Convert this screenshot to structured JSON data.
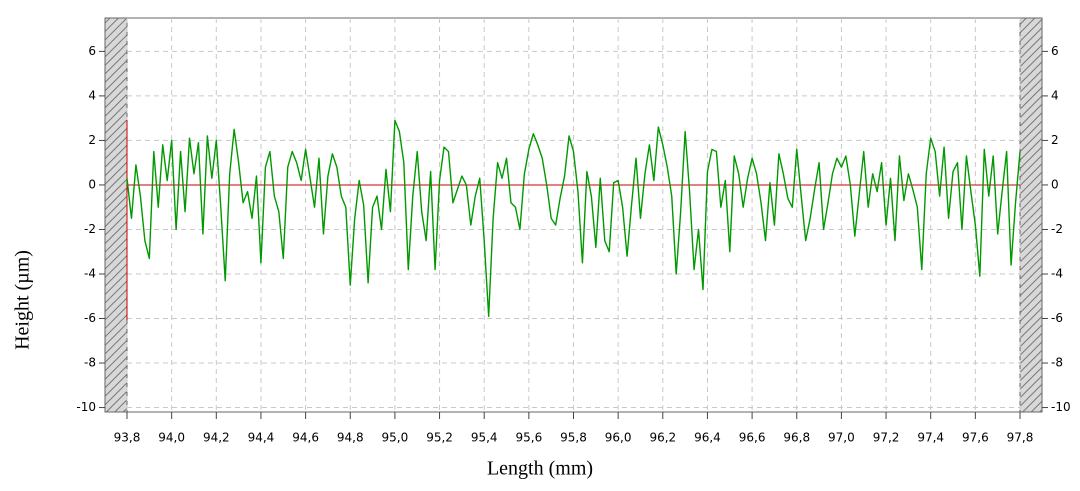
{
  "chart_data": {
    "type": "line",
    "xlabel": "Length (mm)",
    "ylabel": "Height (µm)",
    "x": [
      93.8,
      93.82,
      93.84,
      93.86,
      93.88,
      93.9,
      93.92,
      93.94,
      93.96,
      93.98,
      94.0,
      94.02,
      94.04,
      94.06,
      94.08,
      94.1,
      94.12,
      94.14,
      94.16,
      94.18,
      94.2,
      94.22,
      94.24,
      94.26,
      94.28,
      94.3,
      94.32,
      94.34,
      94.36,
      94.38,
      94.4,
      94.42,
      94.44,
      94.46,
      94.48,
      94.5,
      94.52,
      94.54,
      94.56,
      94.58,
      94.6,
      94.62,
      94.64,
      94.66,
      94.68,
      94.7,
      94.72,
      94.74,
      94.76,
      94.78,
      94.8,
      94.82,
      94.84,
      94.86,
      94.88,
      94.9,
      94.92,
      94.94,
      94.96,
      94.98,
      95.0,
      95.02,
      95.04,
      95.06,
      95.08,
      95.1,
      95.12,
      95.14,
      95.16,
      95.18,
      95.2,
      95.22,
      95.24,
      95.26,
      95.28,
      95.3,
      95.32,
      95.34,
      95.36,
      95.38,
      95.4,
      95.42,
      95.44,
      95.46,
      95.48,
      95.5,
      95.52,
      95.54,
      95.56,
      95.58,
      95.6,
      95.62,
      95.64,
      95.66,
      95.68,
      95.7,
      95.72,
      95.74,
      95.76,
      95.78,
      95.8,
      95.82,
      95.84,
      95.86,
      95.88,
      95.9,
      95.92,
      95.94,
      95.96,
      95.98,
      96.0,
      96.02,
      96.04,
      96.06,
      96.08,
      96.1,
      96.12,
      96.14,
      96.16,
      96.18,
      96.2,
      96.22,
      96.24,
      96.26,
      96.28,
      96.3,
      96.32,
      96.34,
      96.36,
      96.38,
      96.4,
      96.42,
      96.44,
      96.46,
      96.48,
      96.5,
      96.52,
      96.54,
      96.56,
      96.58,
      96.6,
      96.62,
      96.64,
      96.66,
      96.68,
      96.7,
      96.72,
      96.74,
      96.76,
      96.78,
      96.8,
      96.82,
      96.84,
      96.86,
      96.88,
      96.9,
      96.92,
      96.94,
      96.96,
      96.98,
      97.0,
      97.02,
      97.04,
      97.06,
      97.08,
      97.1,
      97.12,
      97.14,
      97.16,
      97.18,
      97.2,
      97.22,
      97.24,
      97.26,
      97.28,
      97.3,
      97.32,
      97.34,
      97.36,
      97.38,
      97.4,
      97.42,
      97.44,
      97.46,
      97.48,
      97.5,
      97.52,
      97.54,
      97.56,
      97.58,
      97.6,
      97.62,
      97.64,
      97.66,
      97.68,
      97.7,
      97.72,
      97.74,
      97.76,
      97.78,
      97.8
    ],
    "series": [
      {
        "color": "#009900",
        "values": [
          0.3,
          -1.5,
          0.9,
          -0.5,
          -2.5,
          -3.3,
          1.5,
          -1.0,
          1.8,
          0.2,
          2.0,
          -2.0,
          1.5,
          -1.2,
          2.1,
          0.5,
          1.9,
          -2.2,
          2.2,
          0.3,
          2.0,
          -1.0,
          -4.3,
          0.5,
          2.5,
          1.0,
          -0.8,
          -0.3,
          -1.5,
          0.4,
          -3.5,
          0.8,
          1.5,
          -0.5,
          -1.2,
          -3.3,
          0.8,
          1.5,
          1.0,
          0.2,
          1.6,
          0.3,
          -1.0,
          1.2,
          -2.2,
          0.4,
          1.4,
          0.8,
          -0.5,
          -1.0,
          -4.5,
          -1.5,
          0.2,
          -0.9,
          -4.4,
          -1.0,
          -0.5,
          -2.0,
          0.7,
          -1.2,
          2.9,
          2.4,
          1.0,
          -3.8,
          -0.5,
          1.5,
          -1.2,
          -2.5,
          0.6,
          -3.8,
          0.2,
          1.7,
          1.5,
          -0.8,
          -0.2,
          0.4,
          0.0,
          -1.8,
          -0.5,
          0.3,
          -2.5,
          -5.9,
          -1.5,
          1.0,
          0.3,
          1.2,
          -0.8,
          -1.0,
          -2.0,
          0.5,
          1.6,
          2.3,
          1.8,
          1.2,
          0.0,
          -1.5,
          -1.8,
          -0.6,
          0.4,
          2.2,
          1.5,
          -0.3,
          -3.5,
          0.6,
          -0.5,
          -2.8,
          0.3,
          -2.5,
          -3.0,
          0.1,
          0.2,
          -1.0,
          -3.2,
          -0.9,
          1.2,
          -1.5,
          0.5,
          1.8,
          0.2,
          2.6,
          1.8,
          0.8,
          -0.5,
          -4.0,
          -1.2,
          2.4,
          -0.3,
          -3.8,
          -2.0,
          -4.7,
          0.6,
          1.6,
          1.5,
          -1.0,
          0.2,
          -3.0,
          1.3,
          0.5,
          -1.0,
          0.3,
          1.2,
          0.5,
          -0.8,
          -2.5,
          0.1,
          -1.8,
          1.4,
          0.5,
          -0.6,
          -1.0,
          1.6,
          -0.5,
          -2.5,
          -1.5,
          -0.2,
          1.0,
          -2.0,
          -0.8,
          0.5,
          1.2,
          0.8,
          1.3,
          0.0,
          -2.3,
          -0.4,
          1.5,
          -1.0,
          0.5,
          -0.3,
          1.0,
          -1.8,
          0.3,
          -2.5,
          1.3,
          -0.7,
          0.5,
          -0.2,
          -1.0,
          -3.8,
          0.5,
          2.1,
          1.5,
          -0.5,
          1.7,
          -1.5,
          0.6,
          1.0,
          -2.0,
          1.3,
          -0.3,
          -1.8,
          -4.1,
          1.6,
          -0.5,
          1.3,
          -2.2,
          -0.3,
          1.5,
          -3.6,
          -0.8,
          1.5
        ]
      }
    ],
    "xlim": [
      93.8,
      97.8
    ],
    "xticks": [
      {
        "value": 93.8,
        "label": "93,8"
      },
      {
        "value": 94.0,
        "label": "94,0"
      },
      {
        "value": 94.2,
        "label": "94,2"
      },
      {
        "value": 94.4,
        "label": "94,4"
      },
      {
        "value": 94.6,
        "label": "94,6"
      },
      {
        "value": 94.8,
        "label": "94,8"
      },
      {
        "value": 95.0,
        "label": "95,0"
      },
      {
        "value": 95.2,
        "label": "95,2"
      },
      {
        "value": 95.4,
        "label": "95,4"
      },
      {
        "value": 95.6,
        "label": "95,6"
      },
      {
        "value": 95.8,
        "label": "95,8"
      },
      {
        "value": 96.0,
        "label": "96,0"
      },
      {
        "value": 96.2,
        "label": "96,2"
      },
      {
        "value": 96.4,
        "label": "96,4"
      },
      {
        "value": 96.6,
        "label": "96,6"
      },
      {
        "value": 96.8,
        "label": "96,8"
      },
      {
        "value": 97.0,
        "label": "97,0"
      },
      {
        "value": 97.2,
        "label": "97,2"
      },
      {
        "value": 97.4,
        "label": "97,4"
      },
      {
        "value": 97.6,
        "label": "97,6"
      },
      {
        "value": 97.8,
        "label": "97,8"
      }
    ],
    "ylim": [
      -10.2,
      7.5
    ],
    "yticks": [
      -10,
      -8,
      -6,
      -4,
      -2,
      0,
      2,
      4,
      6
    ],
    "grid": true,
    "zero_line_color": "#cc0000"
  }
}
